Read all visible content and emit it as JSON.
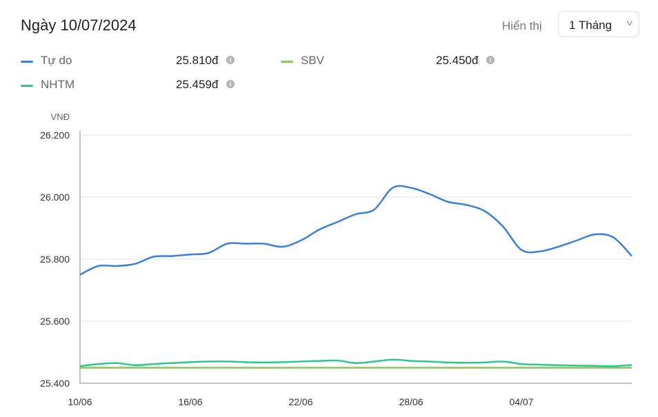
{
  "header": {
    "title": "Ngày 10/07/2024",
    "show_label": "Hiển thị",
    "period": "1 Tháng"
  },
  "legend": [
    {
      "name": "Tự do",
      "value": "25.810đ",
      "color": "#3a7fdc"
    },
    {
      "name": "SBV",
      "value": "25.450đ",
      "color": "#8cc265"
    },
    {
      "name": "NHTM",
      "value": "25.459đ",
      "color": "#2bc88a"
    }
  ],
  "chart_data": {
    "type": "line",
    "ylabel": "VNĐ",
    "ylim": [
      25400,
      26200
    ],
    "yticks": [
      25400,
      25600,
      25800,
      26000,
      26200
    ],
    "ytick_labels": [
      "25.400",
      "25.600",
      "25.800",
      "26.000",
      "26.200"
    ],
    "xtick_labels": [
      "10/06",
      "16/06",
      "22/06",
      "28/06",
      "04/07"
    ],
    "xtick_days": [
      0,
      6,
      12,
      18,
      24
    ],
    "x_days": 30,
    "grid": true,
    "series": [
      {
        "name": "Tự do",
        "color": "#3a7fdc",
        "values": [
          25750,
          25778,
          25778,
          25785,
          25808,
          25810,
          25815,
          25820,
          25850,
          25850,
          25850,
          25840,
          25860,
          25895,
          25920,
          25945,
          25960,
          26030,
          26030,
          26010,
          25985,
          25975,
          25955,
          25905,
          25830,
          25825,
          25840,
          25860,
          25880,
          25870,
          25810
        ]
      },
      {
        "name": "NHTM",
        "color": "#2bc88a",
        "values": [
          25455,
          25462,
          25465,
          25458,
          25462,
          25465,
          25468,
          25470,
          25470,
          25468,
          25467,
          25468,
          25470,
          25472,
          25473,
          25465,
          25470,
          25476,
          25472,
          25470,
          25467,
          25466,
          25467,
          25470,
          25462,
          25460,
          25458,
          25457,
          25456,
          25455,
          25459
        ]
      },
      {
        "name": "SBV",
        "color": "#8cc265",
        "values": [
          25450,
          25450,
          25450,
          25450,
          25450,
          25450,
          25450,
          25450,
          25450,
          25450,
          25450,
          25450,
          25450,
          25450,
          25450,
          25450,
          25450,
          25450,
          25450,
          25450,
          25450,
          25450,
          25450,
          25450,
          25450,
          25450,
          25450,
          25450,
          25450,
          25450,
          25450
        ]
      }
    ]
  }
}
